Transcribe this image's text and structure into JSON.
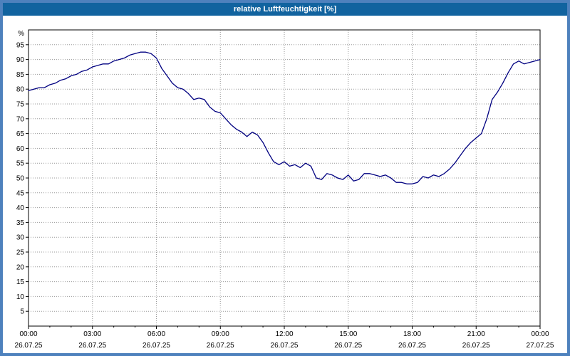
{
  "title": "relative Luftfeuchtigkeit [%]",
  "colors": {
    "titlebar_bg": "#11639f",
    "title_text": "#ffffff",
    "frame": "#4e81bd",
    "plot_background": "#ffffff",
    "plot_line": "#000080",
    "grid": "#999999",
    "axis": "#000000"
  },
  "chart_data": {
    "type": "line",
    "title": "relative Luftfeuchtigkeit [%]",
    "ylabel": "%",
    "xlabel": "",
    "ylim": [
      0,
      100
    ],
    "xlim": [
      0,
      24
    ],
    "grid": true,
    "legend_position": "none",
    "yticks": [
      5,
      10,
      15,
      20,
      25,
      30,
      35,
      40,
      45,
      50,
      55,
      60,
      65,
      70,
      75,
      80,
      85,
      90,
      95
    ],
    "xticks": [
      {
        "hour": 0,
        "time": "00:00",
        "date": "26.07.25"
      },
      {
        "hour": 3,
        "time": "03:00",
        "date": "26.07.25"
      },
      {
        "hour": 6,
        "time": "06:00",
        "date": "26.07.25"
      },
      {
        "hour": 9,
        "time": "09:00",
        "date": "26.07.25"
      },
      {
        "hour": 12,
        "time": "12:00",
        "date": "26.07.25"
      },
      {
        "hour": 15,
        "time": "15:00",
        "date": "26.07.25"
      },
      {
        "hour": 18,
        "time": "18:00",
        "date": "26.07.25"
      },
      {
        "hour": 21,
        "time": "21:00",
        "date": "26.07.25"
      },
      {
        "hour": 24,
        "time": "00:00",
        "date": "27.07.25"
      }
    ],
    "series": [
      {
        "name": "relative Luftfeuchtigkeit",
        "color": "#000080",
        "x": [
          0,
          0.25,
          0.5,
          0.75,
          1,
          1.25,
          1.5,
          1.75,
          2,
          2.25,
          2.5,
          2.75,
          3,
          3.25,
          3.5,
          3.75,
          4,
          4.25,
          4.5,
          4.75,
          5,
          5.25,
          5.5,
          5.75,
          6,
          6.25,
          6.5,
          6.75,
          7,
          7.25,
          7.5,
          7.75,
          8,
          8.25,
          8.5,
          8.75,
          9,
          9.25,
          9.5,
          9.75,
          10,
          10.25,
          10.5,
          10.75,
          11,
          11.25,
          11.5,
          11.75,
          12,
          12.25,
          12.5,
          12.75,
          13,
          13.25,
          13.5,
          13.75,
          14,
          14.25,
          14.5,
          14.75,
          15,
          15.25,
          15.5,
          15.75,
          16,
          16.25,
          16.5,
          16.75,
          17,
          17.25,
          17.5,
          17.75,
          18,
          18.25,
          18.5,
          18.75,
          19,
          19.25,
          19.5,
          19.75,
          20,
          20.25,
          20.5,
          20.75,
          21,
          21.25,
          21.5,
          21.75,
          22,
          22.25,
          22.5,
          22.75,
          23,
          23.25,
          23.5,
          23.75,
          24
        ],
        "y": [
          79.5,
          80,
          80.5,
          80.5,
          81.5,
          82,
          83,
          83.5,
          84.5,
          85,
          86,
          86.5,
          87.5,
          88,
          88.5,
          88.5,
          89.5,
          90,
          90.5,
          91.5,
          92,
          92.5,
          92.5,
          92,
          90.5,
          87,
          84.5,
          82,
          80.5,
          80,
          78.5,
          76.5,
          77,
          76.5,
          74,
          72.5,
          72,
          70,
          68,
          66.5,
          65.5,
          64,
          65.5,
          64.5,
          62,
          58.5,
          55.5,
          54.5,
          55.5,
          54,
          54.5,
          53.5,
          55,
          54,
          50,
          49.5,
          51.5,
          51,
          50,
          49.5,
          51,
          49,
          49.5,
          51.5,
          51.5,
          51,
          50.5,
          51,
          50,
          48.5,
          48.5,
          48,
          48,
          48.5,
          50.5,
          50,
          51,
          50.5,
          51.5,
          53,
          55,
          57.5,
          60,
          62,
          63.5,
          65,
          70,
          76.5,
          79,
          82,
          85.5,
          88.5,
          89.5,
          88.5,
          89,
          89.5,
          90
        ]
      }
    ]
  }
}
